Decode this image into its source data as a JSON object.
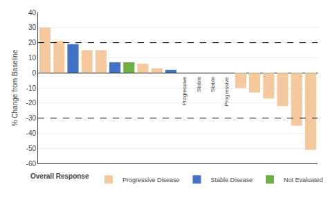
{
  "chart_data": {
    "type": "bar",
    "categories": [
      null,
      null,
      null,
      null,
      null,
      null,
      null,
      null,
      null,
      null,
      null,
      null,
      null,
      null,
      null,
      null,
      null,
      null,
      null,
      null
    ],
    "series": [
      {
        "name": "Progressive Disease",
        "color": "#f5c9a0",
        "values": [
          30,
          21,
          null,
          15,
          15,
          null,
          null,
          6,
          3,
          null,
          0,
          0,
          0,
          0,
          -10,
          -13,
          -17,
          -22,
          -35,
          -51
        ]
      },
      {
        "name": "Stable Disease",
        "color": "#4472c4",
        "values": [
          null,
          null,
          19,
          null,
          null,
          7,
          null,
          null,
          null,
          2,
          null,
          null,
          null,
          null,
          null,
          null,
          null,
          null,
          null,
          null
        ]
      },
      {
        "name": "Not Evaluated",
        "color": "#70ad47",
        "values": [
          null,
          null,
          null,
          null,
          null,
          null,
          7,
          null,
          null,
          null,
          null,
          null,
          null,
          null,
          null,
          null,
          null,
          null,
          null,
          null
        ]
      }
    ],
    "annotations": [
      null,
      null,
      null,
      null,
      null,
      null,
      null,
      null,
      null,
      null,
      "Progressive",
      "Stable",
      "Stable",
      "Progressive",
      null,
      null,
      null,
      null,
      null,
      null
    ],
    "reference_lines": [
      20,
      -30
    ],
    "ylabel": "% Change from Baseline",
    "legend_title": "Overall Response",
    "ylim": [
      -60,
      40
    ],
    "yticks": [
      -60,
      -50,
      -40,
      -30,
      -20,
      -10,
      0,
      10,
      20,
      30,
      40
    ],
    "grid": true,
    "legend": "bottom",
    "tick_labels": "y"
  }
}
